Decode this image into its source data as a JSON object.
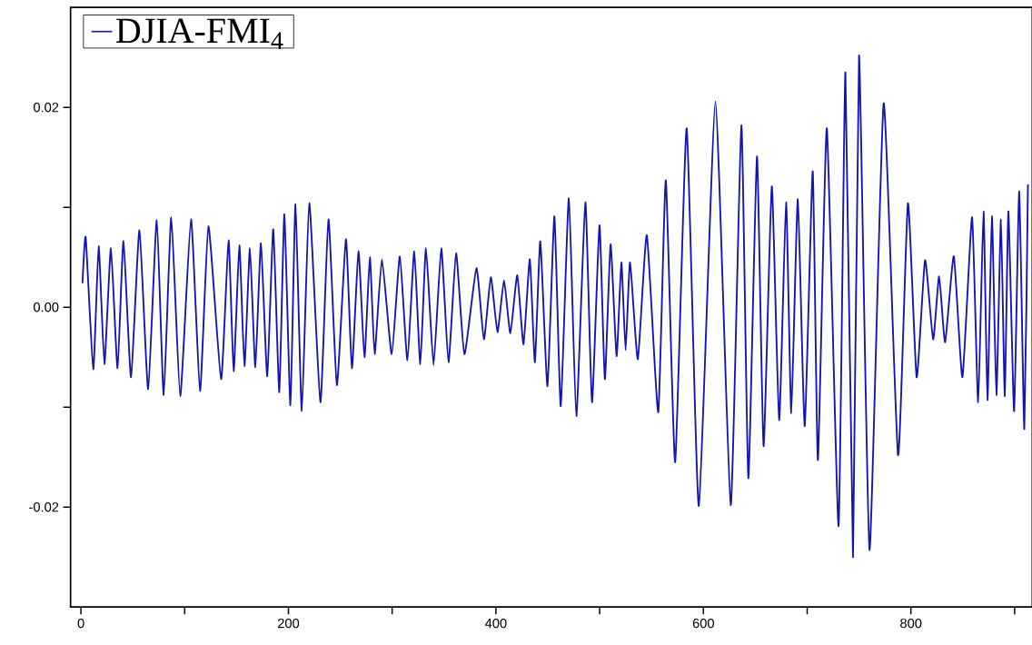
{
  "chart_data": {
    "type": "line",
    "legend": "top left",
    "xlim": [
      -10,
      917
    ],
    "ylim": [
      -0.03,
      0.03
    ],
    "xticks": [
      0,
      {
        "value": 100,
        "label": null
      },
      200,
      {
        "value": 300,
        "label": null
      },
      400,
      {
        "value": 500,
        "label": null
      },
      600,
      {
        "value": 700,
        "label": null
      },
      800,
      {
        "value": 900,
        "label": null
      }
    ],
    "yticks": [
      -0.02,
      {
        "value": -0.01,
        "label": null
      },
      {
        "value": 0,
        "label": "0.00"
      },
      {
        "value": 0.01,
        "label": null
      },
      0.02
    ],
    "series": [
      {
        "name": "DJIA-FMI$_{4}$",
        "color": "#1414b4",
        "x": [
          1.5,
          4.6,
          11.9,
          17.1,
          22.6,
          28.9,
          35.3,
          41.0,
          48.3,
          56.4,
          64.8,
          73.1,
          79.8,
          87.1,
          95.7,
          106.1,
          114.8,
          122.9,
          135.1,
          142.3,
          147.2,
          152.7,
          157.6,
          162.9,
          168.1,
          173.5,
          179.6,
          185.4,
          191.2,
          196.1,
          201.9,
          206.8,
          212.9,
          220.1,
          230.8,
          238.6,
          246.7,
          255.4,
          261.2,
          267.5,
          273.3,
          278.5,
          283.1,
          290.1,
          299.6,
          307.4,
          314.7,
          321.3,
          327.1,
          332.6,
          339.9,
          347.3,
          354.3,
          361.6,
          369.6,
          381.2,
          388.4,
          395.1,
          401.5,
          407.8,
          413.9,
          420.6,
          426.6,
          432.7,
          437.6,
          442.8,
          449.7,
          456.4,
          462.5,
          470.3,
          477.5,
          486.2,
          492.6,
          499.8,
          505.0,
          510.5,
          516.3,
          520.9,
          525.0,
          529.3,
          536.8,
          545.5,
          556.5,
          563.8,
          572.8,
          583.9,
          595.6,
          611.6,
          626.3,
          636.6,
          643.3,
          651.6,
          658.0,
          665.9,
          673.0,
          679.7,
          684.7,
          691.0,
          697.7,
          705.4,
          710.4,
          719.0,
          730.3,
          736.9,
          744.2,
          750.0,
          760.1,
          773.7,
          787.6,
          797.1,
          805.5,
          813.6,
          821.4,
          827.2,
          833.0,
          841.4,
          849.7,
          859.0,
          864.8,
          870.0,
          873.8,
          878.1,
          882.4,
          886.8,
          890.5,
          894.0,
          899.5,
          904.4,
          909.3,
          912.8
        ],
        "values": [
          0.0024,
          0.007,
          -0.0062,
          0.0061,
          -0.0057,
          0.0059,
          -0.0061,
          0.0066,
          -0.007,
          0.0077,
          -0.0082,
          0.0087,
          -0.0088,
          0.009,
          -0.0089,
          0.0088,
          -0.0084,
          0.0081,
          -0.0072,
          0.0067,
          -0.0064,
          0.0062,
          -0.0059,
          0.0059,
          -0.006,
          0.0064,
          -0.0069,
          0.0078,
          -0.0085,
          0.0093,
          -0.0098,
          0.0103,
          -0.0104,
          0.0104,
          -0.0095,
          0.0088,
          -0.0078,
          0.0068,
          -0.0061,
          0.0056,
          -0.005,
          0.005,
          -0.0047,
          0.0048,
          -0.0047,
          0.0051,
          -0.0053,
          0.0056,
          -0.0057,
          0.0059,
          -0.0058,
          0.0059,
          -0.0055,
          0.0054,
          -0.0047,
          0.0039,
          -0.0032,
          0.003,
          -0.0025,
          0.0027,
          -0.0026,
          0.0032,
          -0.0037,
          0.0048,
          -0.0055,
          0.0066,
          -0.0079,
          0.0091,
          -0.0099,
          0.0109,
          -0.0109,
          0.0105,
          -0.0095,
          0.0082,
          -0.0072,
          0.0063,
          -0.0049,
          0.0045,
          -0.0043,
          0.0045,
          -0.0052,
          0.0072,
          -0.0105,
          0.0127,
          -0.0155,
          0.0179,
          -0.0199,
          0.0206,
          -0.0198,
          0.0182,
          -0.0171,
          0.0151,
          -0.0139,
          0.0121,
          -0.0113,
          0.0105,
          -0.0106,
          0.0108,
          -0.0119,
          0.0136,
          -0.0153,
          0.0179,
          -0.0219,
          0.0235,
          -0.025,
          0.0252,
          -0.0243,
          0.0204,
          -0.0148,
          0.0104,
          -0.007,
          0.0047,
          -0.0032,
          0.0031,
          -0.0035,
          0.0051,
          -0.007,
          0.009,
          -0.0095,
          0.0096,
          -0.0093,
          0.0091,
          -0.0088,
          0.0088,
          -0.0089,
          0.0096,
          -0.0104,
          0.0116,
          -0.0122,
          0.0123
        ]
      }
    ]
  }
}
